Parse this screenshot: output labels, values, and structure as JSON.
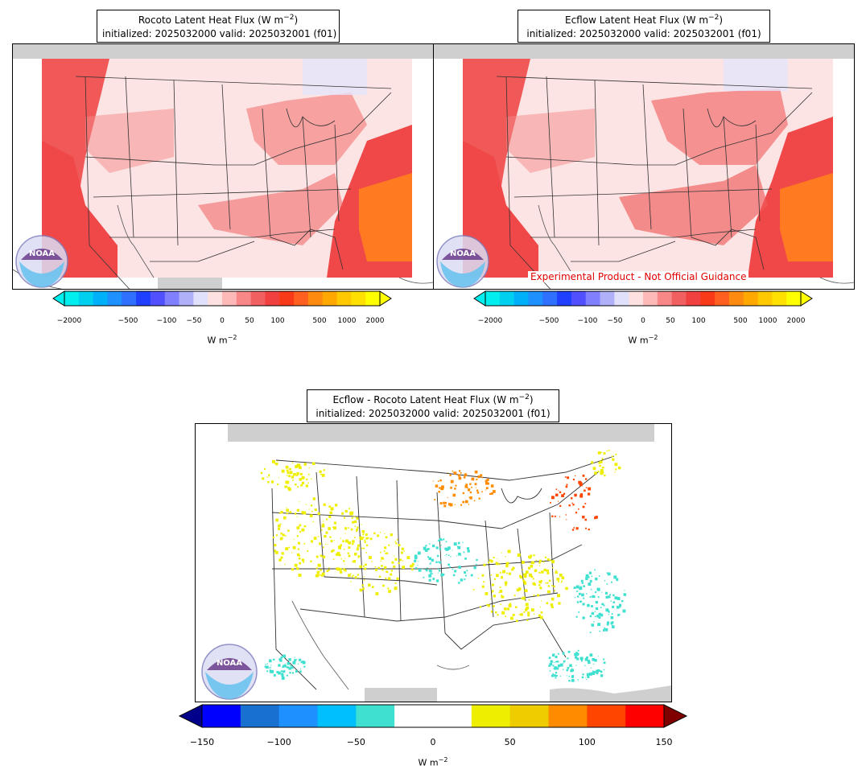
{
  "panels": [
    {
      "id": "rocoto",
      "title_line1": "Rocoto Latent Heat Flux (W m",
      "title_sup": "−2",
      "title_line1_end": ")",
      "title_line2": "initialized: 2025032000 valid: 2025032001 (f01)",
      "colorbar": {
        "ticks": [
          "−2000",
          "−500",
          "−100",
          "−50",
          "0",
          "50",
          "100",
          "500",
          "1000",
          "2000"
        ],
        "unit": "W m",
        "unit_sup": "−2",
        "colors": [
          "#00eeee",
          "#00d0f0",
          "#00b0f8",
          "#1e90ff",
          "#3070ff",
          "#2040ff",
          "#5050ff",
          "#8080ff",
          "#b0b0f8",
          "#e0e0fa",
          "#fde0e0",
          "#fdb8b8",
          "#f88888",
          "#f06060",
          "#f04040",
          "#f83a18",
          "#ff6020",
          "#ff8a10",
          "#ffa800",
          "#ffc800",
          "#ffe000",
          "#ffff00"
        ]
      }
    },
    {
      "id": "ecflow",
      "title_line1": "Ecflow Latent Heat Flux (W m",
      "title_sup": "−2",
      "title_line1_end": ")",
      "title_line2": "initialized: 2025032000 valid: 2025032001 (f01)",
      "watermark": "Experimental Product - Not Official Guidance",
      "colorbar": {
        "ticks": [
          "−2000",
          "−500",
          "−100",
          "−50",
          "0",
          "50",
          "100",
          "500",
          "1000",
          "2000"
        ],
        "unit": "W m",
        "unit_sup": "−2",
        "colors": [
          "#00eeee",
          "#00d0f0",
          "#00b0f8",
          "#1e90ff",
          "#3070ff",
          "#2040ff",
          "#5050ff",
          "#8080ff",
          "#b0b0f8",
          "#e0e0fa",
          "#fde0e0",
          "#fdb8b8",
          "#f88888",
          "#f06060",
          "#f04040",
          "#f83a18",
          "#ff6020",
          "#ff8a10",
          "#ffa800",
          "#ffc800",
          "#ffe000",
          "#ffff00"
        ]
      }
    },
    {
      "id": "diff",
      "title_line1": "Ecflow - Rocoto Latent Heat Flux (W m",
      "title_sup": "−2",
      "title_line1_end": ")",
      "title_line2": "initialized: 2025032000 valid: 2025032001 (f01)",
      "colorbar": {
        "ticks": [
          "−150",
          "−100",
          "−50",
          "0",
          "50",
          "100",
          "150"
        ],
        "unit": "W m",
        "unit_sup": "−2",
        "under_color": "#00008b",
        "over_color": "#800000",
        "colors": [
          "#0000ff",
          "#1870d0",
          "#1e90ff",
          "#00bfff",
          "#40e0d0",
          "#ffffff",
          "#ffffff",
          "#eeee00",
          "#eecc00",
          "#ff8c00",
          "#ff4500",
          "#ff0000"
        ]
      }
    }
  ],
  "logo_text": "NOAA",
  "colors": {
    "land_light": "#fde4e4",
    "ocean_red": "#f04848",
    "ocean_orange": "#ff7a20",
    "grey_mask": "#cfcfcf",
    "state_lines": "#333333"
  }
}
